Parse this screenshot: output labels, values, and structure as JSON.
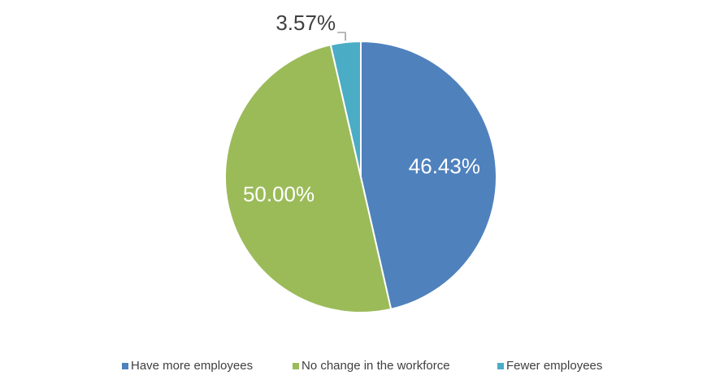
{
  "chart_data": {
    "type": "pie",
    "categories": [
      "Have more employees",
      "No change in the workforce",
      "Fewer employees"
    ],
    "values": [
      46.43,
      50.0,
      3.57
    ],
    "value_labels": [
      "46.43%",
      "50.00%",
      "3.57%"
    ],
    "colors": [
      "#4f81bd",
      "#9bbb59",
      "#4bacc6"
    ],
    "legend": "bottom"
  }
}
